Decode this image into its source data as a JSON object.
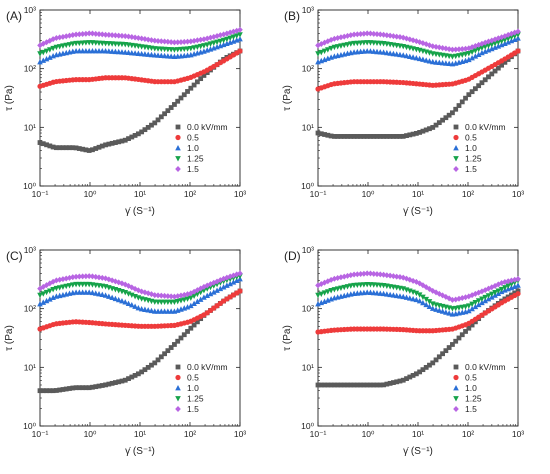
{
  "chart_data": [
    {
      "panel": "(A)",
      "type": "scatter",
      "xlabel": "γ̇ (S⁻¹)",
      "ylabel": "τ (Pa)",
      "xscale": "log",
      "yscale": "log",
      "xlim": [
        0.1,
        1000
      ],
      "ylim": [
        1,
        1000
      ],
      "x_ticks": [
        "10⁻¹",
        "10⁰",
        "10¹",
        "10²",
        "10³"
      ],
      "y_ticks": [
        "10⁰",
        "10¹",
        "10²",
        "10³"
      ],
      "legend_position": "lower-right",
      "x": [
        0.1,
        0.2,
        0.5,
        1,
        2,
        5,
        10,
        20,
        50,
        100,
        200,
        500,
        1000
      ],
      "series": [
        {
          "name": "0.0 kV/mm",
          "values": [
            5.5,
            4.5,
            4.5,
            4,
            5,
            6,
            8,
            12,
            25,
            45,
            80,
            150,
            200
          ]
        },
        {
          "name": "0.5",
          "values": [
            50,
            60,
            65,
            65,
            70,
            70,
            65,
            60,
            60,
            70,
            90,
            140,
            200
          ]
        },
        {
          "name": "1.0",
          "values": [
            130,
            170,
            200,
            200,
            200,
            190,
            180,
            170,
            160,
            170,
            200,
            260,
            320
          ]
        },
        {
          "name": "1.25",
          "values": [
            180,
            230,
            270,
            280,
            270,
            260,
            240,
            220,
            210,
            220,
            250,
            310,
            380
          ]
        },
        {
          "name": "1.5",
          "values": [
            250,
            330,
            380,
            400,
            380,
            360,
            330,
            300,
            280,
            290,
            320,
            390,
            460
          ]
        }
      ]
    },
    {
      "panel": "(B)",
      "type": "scatter",
      "xlabel": "γ̇ (S⁻¹)",
      "ylabel": "τ (Pa)",
      "xscale": "log",
      "yscale": "log",
      "xlim": [
        0.1,
        1000
      ],
      "ylim": [
        1,
        1000
      ],
      "x_ticks": [
        "10⁻¹",
        "10⁰",
        "10¹",
        "10²",
        "10³"
      ],
      "y_ticks": [
        "10⁰",
        "10¹",
        "10²",
        "10³"
      ],
      "legend_position": "lower-right",
      "x": [
        0.1,
        0.2,
        0.5,
        1,
        2,
        5,
        10,
        20,
        50,
        100,
        200,
        500,
        1000
      ],
      "series": [
        {
          "name": "0.0 kV/mm",
          "values": [
            8,
            7,
            7,
            7,
            7,
            7,
            8,
            10,
            18,
            35,
            60,
            120,
            200
          ]
        },
        {
          "name": "0.5",
          "values": [
            45,
            55,
            60,
            60,
            60,
            58,
            55,
            52,
            55,
            65,
            90,
            140,
            200
          ]
        },
        {
          "name": "1.0",
          "values": [
            130,
            160,
            190,
            200,
            190,
            170,
            150,
            130,
            120,
            140,
            190,
            260,
            330
          ]
        },
        {
          "name": "1.25",
          "values": [
            180,
            230,
            270,
            280,
            270,
            240,
            210,
            180,
            160,
            180,
            230,
            300,
            380
          ]
        },
        {
          "name": "1.5",
          "values": [
            250,
            320,
            380,
            400,
            380,
            340,
            290,
            240,
            210,
            220,
            270,
            350,
            430
          ]
        }
      ]
    },
    {
      "panel": "(C)",
      "type": "scatter",
      "xlabel": "γ̇ (S⁻¹)",
      "ylabel": "τ (Pa)",
      "xscale": "log",
      "yscale": "log",
      "xlim": [
        0.1,
        1000
      ],
      "ylim": [
        1,
        1000
      ],
      "x_ticks": [
        "10⁻¹",
        "10⁰",
        "10¹",
        "10²",
        "10³"
      ],
      "y_ticks": [
        "10⁰",
        "10¹",
        "10²",
        "10³"
      ],
      "legend_position": "lower-right",
      "x": [
        0.1,
        0.2,
        0.5,
        1,
        2,
        5,
        10,
        20,
        50,
        100,
        200,
        500,
        1000
      ],
      "series": [
        {
          "name": "0.0 kV/mm",
          "values": [
            4,
            4,
            4.5,
            4.5,
            5,
            6,
            8,
            12,
            25,
            45,
            80,
            140,
            200
          ]
        },
        {
          "name": "0.5",
          "values": [
            45,
            55,
            60,
            58,
            55,
            52,
            50,
            50,
            52,
            60,
            80,
            140,
            200
          ]
        },
        {
          "name": "1.0",
          "values": [
            120,
            160,
            190,
            190,
            170,
            130,
            100,
            90,
            90,
            110,
            160,
            240,
            320
          ]
        },
        {
          "name": "1.25",
          "values": [
            170,
            220,
            260,
            260,
            240,
            190,
            150,
            130,
            130,
            150,
            210,
            300,
            360
          ]
        },
        {
          "name": "1.5",
          "values": [
            220,
            300,
            350,
            360,
            330,
            260,
            200,
            170,
            160,
            180,
            240,
            330,
            400
          ]
        }
      ]
    },
    {
      "panel": "(D)",
      "type": "scatter",
      "xlabel": "γ̇ (S⁻¹)",
      "ylabel": "τ (Pa)",
      "xscale": "log",
      "yscale": "log",
      "xlim": [
        0.1,
        1000
      ],
      "ylim": [
        1,
        1000
      ],
      "x_ticks": [
        "10⁻¹",
        "10⁰",
        "10¹",
        "10²",
        "10³"
      ],
      "y_ticks": [
        "10⁰",
        "10¹",
        "10²",
        "10³"
      ],
      "legend_position": "lower-right",
      "x": [
        0.1,
        0.2,
        0.5,
        1,
        2,
        5,
        10,
        20,
        50,
        100,
        200,
        500,
        1000
      ],
      "series": [
        {
          "name": "0.0 kV/mm",
          "values": [
            5,
            5,
            5,
            5,
            5,
            6,
            8,
            12,
            25,
            45,
            80,
            140,
            200
          ]
        },
        {
          "name": "0.5",
          "values": [
            40,
            43,
            45,
            45,
            45,
            44,
            42,
            42,
            45,
            55,
            80,
            130,
            180
          ]
        },
        {
          "name": "1.0",
          "values": [
            120,
            150,
            180,
            190,
            180,
            160,
            140,
            100,
            80,
            90,
            130,
            200,
            250
          ]
        },
        {
          "name": "1.25",
          "values": [
            170,
            210,
            250,
            260,
            250,
            220,
            180,
            120,
            100,
            110,
            150,
            220,
            300
          ]
        },
        {
          "name": "1.5",
          "values": [
            250,
            320,
            380,
            400,
            380,
            340,
            280,
            200,
            140,
            160,
            200,
            280,
            320
          ]
        }
      ]
    }
  ],
  "series_colors": [
    "#5a5a5a",
    "#ee3b3b",
    "#2a6fd6",
    "#16a34a",
    "#b865e3"
  ],
  "series_markers": [
    "square",
    "circle",
    "triangle-up",
    "triangle-down",
    "diamond"
  ]
}
